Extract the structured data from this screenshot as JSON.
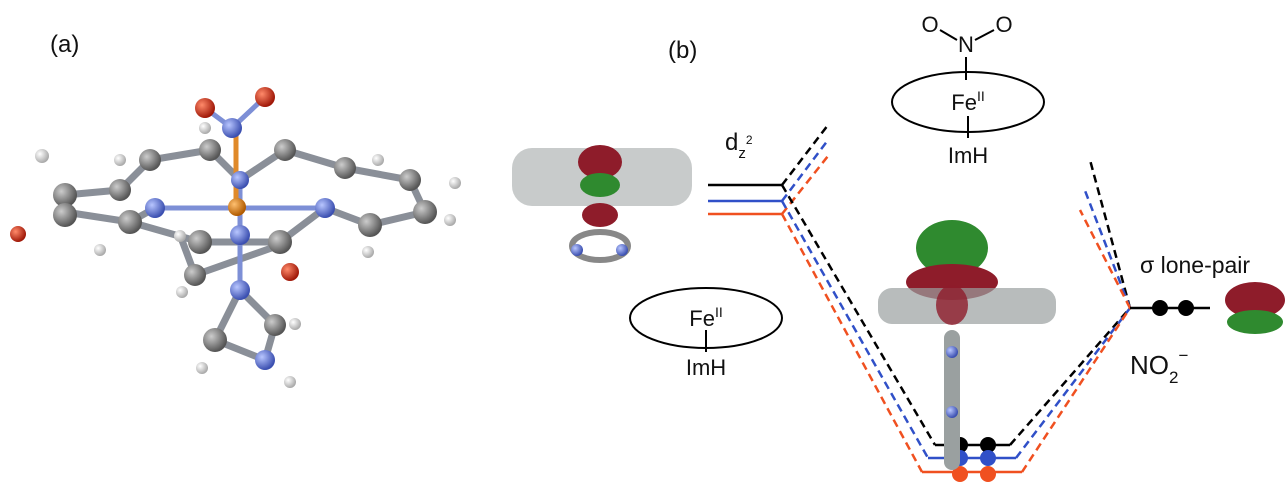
{
  "panels": [
    {
      "label": "(a)"
    },
    {
      "label": "(b)"
    }
  ],
  "diagram": {
    "orbital_label": {
      "base": "d",
      "sub": "z",
      "sup": "2"
    },
    "fe_left": {
      "metal": "Fe",
      "oxidation": "II",
      "ligand": "ImH"
    },
    "fe_top": {
      "atoms": [
        "O",
        "N",
        "O"
      ],
      "metal": "Fe",
      "oxidation": "II",
      "ligand": "ImH"
    },
    "lone_pair_label": "σ lone-pair",
    "nitrite": {
      "base": "NO",
      "sub": "2",
      "sup": "−"
    }
  }
}
